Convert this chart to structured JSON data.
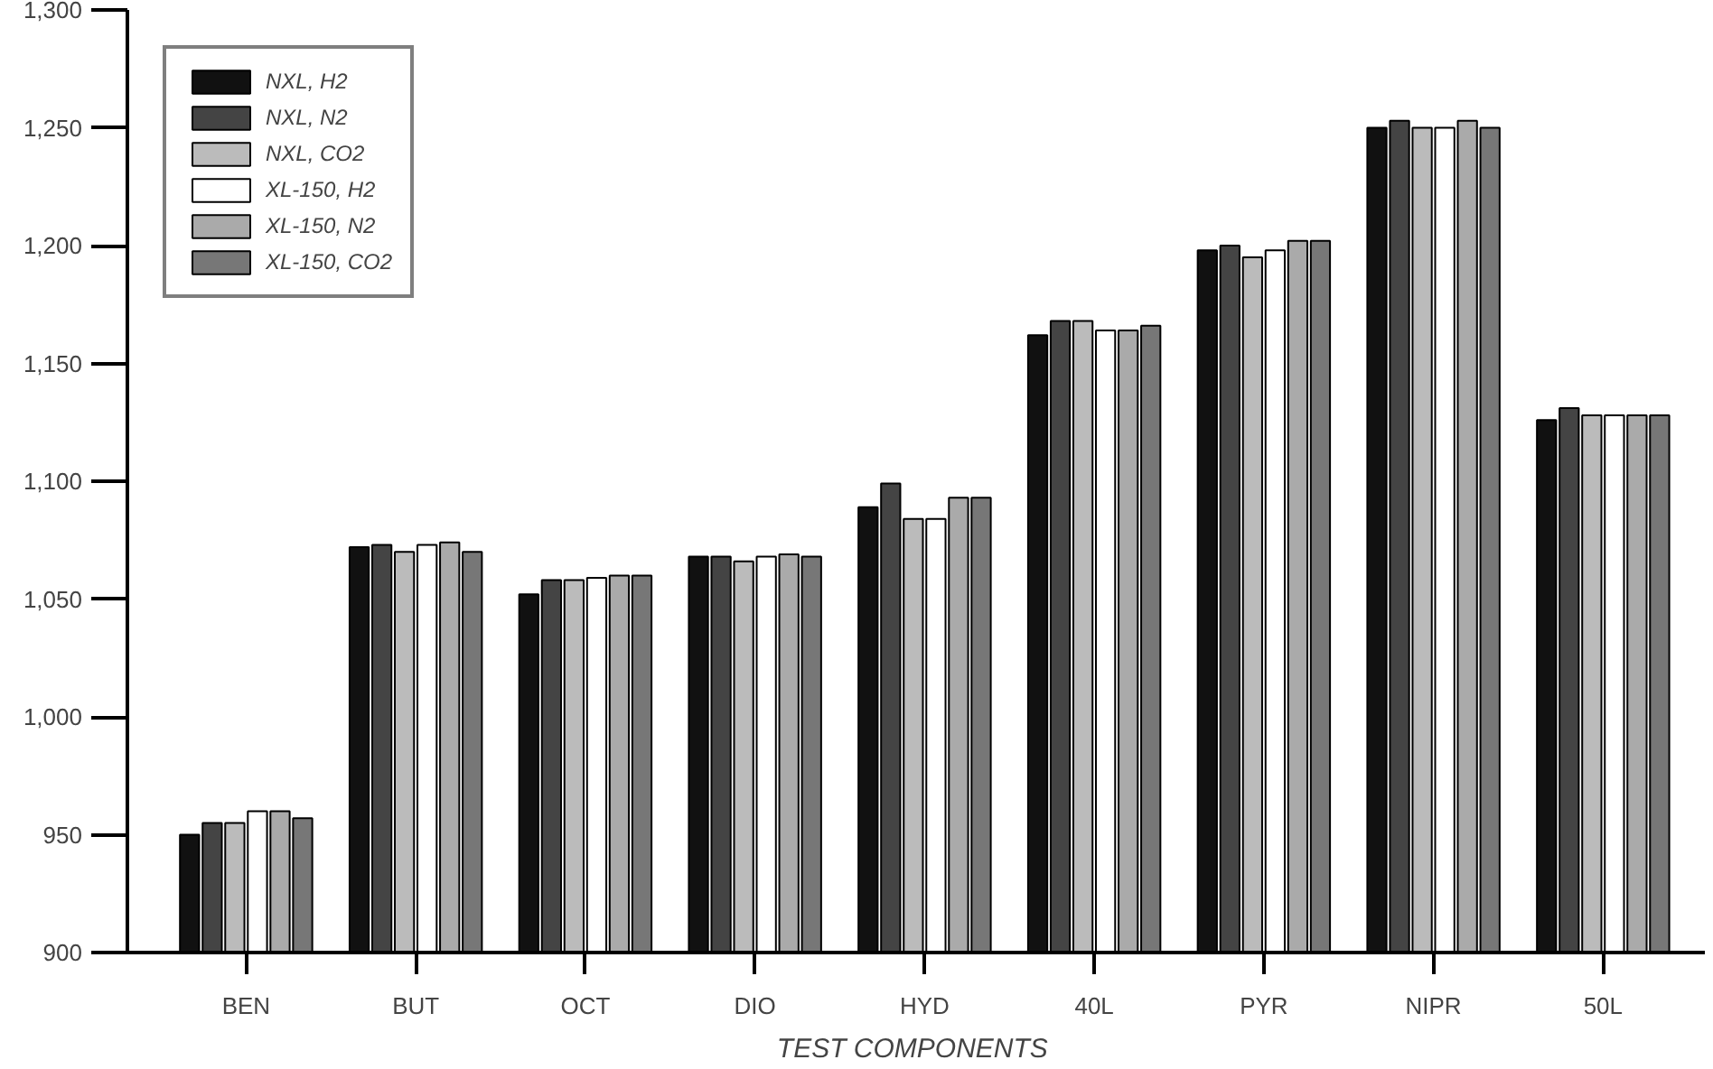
{
  "chart_data": {
    "type": "bar",
    "xlabel": "TEST  COMPONENTS",
    "categories": [
      "BEN",
      "BUT",
      "OCT",
      "DIO",
      "HYD",
      "40L",
      "PYR",
      "NIPR",
      "50L"
    ],
    "series": [
      {
        "name": "NXL, H2",
        "color": "#111111",
        "values": [
          950,
          1072,
          1052,
          1068,
          1089,
          1162,
          1198,
          1250,
          1126
        ]
      },
      {
        "name": "NXL, N2",
        "color": "#444444",
        "values": [
          955,
          1073,
          1058,
          1068,
          1099,
          1168,
          1200,
          1253,
          1131
        ]
      },
      {
        "name": "NXL, CO2",
        "color": "#bbbbbb",
        "values": [
          955,
          1070,
          1058,
          1066,
          1084,
          1168,
          1195,
          1250,
          1128
        ]
      },
      {
        "name": "XL-150, H2",
        "color": "#ffffff",
        "values": [
          960,
          1073,
          1059,
          1068,
          1084,
          1164,
          1198,
          1250,
          1128
        ]
      },
      {
        "name": "XL-150, N2",
        "color": "#aaaaaa",
        "values": [
          960,
          1074,
          1060,
          1069,
          1093,
          1164,
          1202,
          1253,
          1128
        ]
      },
      {
        "name": "XL-150, CO2",
        "color": "#777777",
        "values": [
          957,
          1070,
          1060,
          1068,
          1093,
          1166,
          1202,
          1250,
          1128
        ]
      }
    ],
    "ylim": [
      900,
      1300
    ],
    "yticks": [
      {
        "value": 900,
        "label": "900"
      },
      {
        "value": 950,
        "label": "950"
      },
      {
        "value": 1000,
        "label": "1,000"
      },
      {
        "value": 1050,
        "label": "1,050"
      },
      {
        "value": 1100,
        "label": "1,100"
      },
      {
        "value": 1150,
        "label": "1,150"
      },
      {
        "value": 1200,
        "label": "1,200"
      },
      {
        "value": 1250,
        "label": "1,250"
      },
      {
        "value": 1300,
        "label": "1,300"
      }
    ],
    "grid": false,
    "legend": "top left"
  }
}
